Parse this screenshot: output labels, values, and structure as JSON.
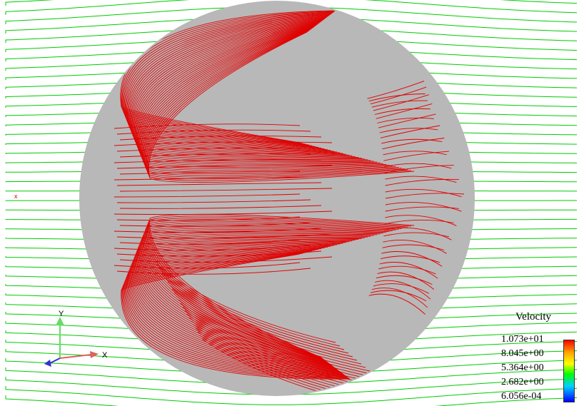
{
  "legend": {
    "title": "Velocity",
    "ticks": [
      "1.073e+01",
      "8.045e+00",
      "5.364e+00",
      "2.682e+00",
      "6.056e-04"
    ]
  },
  "axes": {
    "x_label": "X",
    "y_label": "Y"
  },
  "marker": "x",
  "colors": {
    "background": "#ffffff",
    "sphere": "#b8b8b8",
    "streamline_outer": "#00cc00",
    "streamline_inner": "#e00000",
    "x_axis": "#e06060",
    "y_axis": "#66dd66",
    "z_axis": "#3333cc"
  }
}
